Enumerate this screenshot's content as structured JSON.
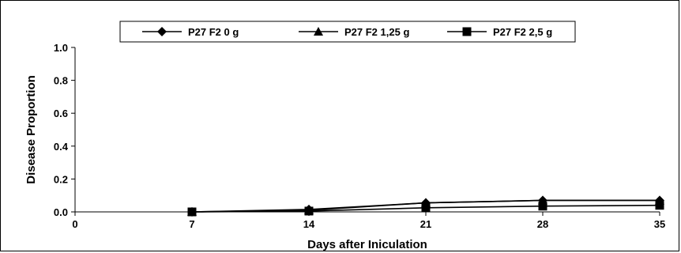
{
  "chart_data": {
    "type": "line",
    "title": "",
    "xlabel": "Days after Iniculation",
    "ylabel": "Disease Proportion",
    "x": [
      7,
      14,
      21,
      28,
      35
    ],
    "xlim": [
      0,
      35
    ],
    "ylim": [
      0,
      1.0
    ],
    "xticks": [
      "0",
      "7",
      "14",
      "21",
      "28",
      "35"
    ],
    "yticks": [
      "0.0",
      "0.2",
      "0.4",
      "0.6",
      "0.8",
      "1.0"
    ],
    "grid": false,
    "legend_position": "top-center",
    "series": [
      {
        "name": "P27 F2 0 g",
        "marker": "diamond",
        "values": [
          0.0,
          0.015,
          0.055,
          0.07,
          0.07
        ]
      },
      {
        "name": "P27 F2 1,25 g",
        "marker": "triangle",
        "values": [
          0.0,
          0.01,
          0.055,
          0.07,
          0.07
        ]
      },
      {
        "name": "P27 F2 2,5 g",
        "marker": "square",
        "values": [
          0.0,
          0.005,
          0.025,
          0.035,
          0.04
        ]
      }
    ],
    "colors": {
      "line": "#000000",
      "background": "#ffffff"
    }
  }
}
